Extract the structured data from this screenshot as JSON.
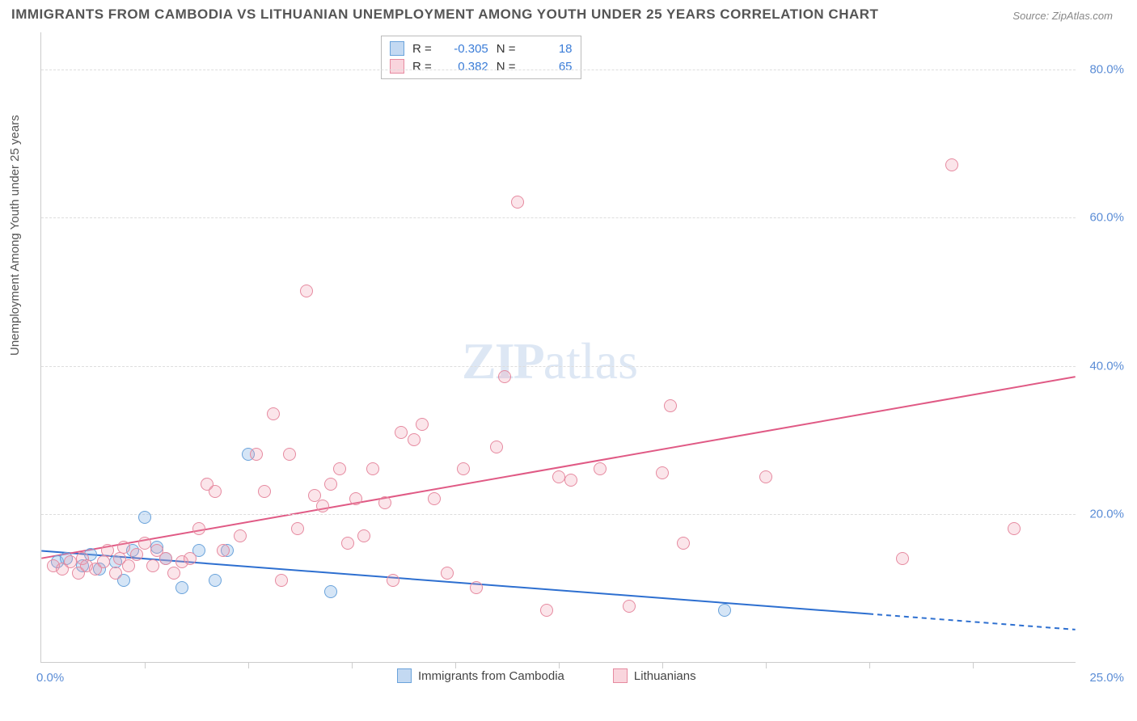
{
  "title": "IMMIGRANTS FROM CAMBODIA VS LITHUANIAN UNEMPLOYMENT AMONG YOUTH UNDER 25 YEARS CORRELATION CHART",
  "source_label": "Source:",
  "source_name": "ZipAtlas.com",
  "y_axis_label": "Unemployment Among Youth under 25 years",
  "watermark_zip": "ZIP",
  "watermark_atlas": "atlas",
  "chart": {
    "type": "scatter",
    "xlim": [
      0,
      25
    ],
    "ylim": [
      0,
      85
    ],
    "x_ticks": [
      0,
      25
    ],
    "x_tick_labels": [
      "0.0%",
      "25.0%"
    ],
    "y_ticks": [
      20,
      40,
      60,
      80
    ],
    "y_tick_labels": [
      "20.0%",
      "40.0%",
      "60.0%",
      "80.0%"
    ],
    "x_minor_ticks": [
      2.5,
      5,
      7.5,
      10,
      12.5,
      15,
      17.5,
      20,
      22.5
    ],
    "grid_color": "#dddddd",
    "background_color": "#ffffff",
    "point_radius": 8,
    "series": [
      {
        "name": "Immigrants from Cambodia",
        "color_fill": "rgba(135,180,230,0.35)",
        "color_stroke": "#6aa3db",
        "R": -0.305,
        "N": 18,
        "trend": {
          "x1": 0,
          "y1": 15,
          "x2": 20,
          "y2": 6.5,
          "extrapolate_to": 25,
          "color": "#2d6fd0",
          "width": 2
        },
        "data": [
          [
            0.4,
            13.5
          ],
          [
            0.6,
            14
          ],
          [
            1.0,
            13
          ],
          [
            1.2,
            14.5
          ],
          [
            1.4,
            12.5
          ],
          [
            1.8,
            13.5
          ],
          [
            2.0,
            11
          ],
          [
            2.2,
            15
          ],
          [
            2.5,
            19.5
          ],
          [
            2.8,
            15.5
          ],
          [
            3.0,
            14
          ],
          [
            3.4,
            10
          ],
          [
            3.8,
            15
          ],
          [
            4.2,
            11
          ],
          [
            4.5,
            15
          ],
          [
            5.0,
            28
          ],
          [
            7.0,
            9.5
          ],
          [
            16.5,
            7
          ]
        ]
      },
      {
        "name": "Lithuanians",
        "color_fill": "rgba(240,150,170,0.25)",
        "color_stroke": "#e68aa0",
        "R": 0.382,
        "N": 65,
        "trend": {
          "x1": 0,
          "y1": 14,
          "x2": 25,
          "y2": 38.5,
          "color": "#e05a85",
          "width": 2
        },
        "data": [
          [
            0.3,
            13
          ],
          [
            0.5,
            12.5
          ],
          [
            0.7,
            13.5
          ],
          [
            0.9,
            12
          ],
          [
            1.0,
            14
          ],
          [
            1.1,
            13
          ],
          [
            1.3,
            12.5
          ],
          [
            1.5,
            13.5
          ],
          [
            1.6,
            15
          ],
          [
            1.8,
            12
          ],
          [
            1.9,
            14
          ],
          [
            2.0,
            15.5
          ],
          [
            2.1,
            13
          ],
          [
            2.3,
            14.5
          ],
          [
            2.5,
            16
          ],
          [
            2.7,
            13
          ],
          [
            2.8,
            15
          ],
          [
            3.0,
            14
          ],
          [
            3.2,
            12
          ],
          [
            3.4,
            13.5
          ],
          [
            3.6,
            14
          ],
          [
            3.8,
            18
          ],
          [
            4.0,
            24
          ],
          [
            4.2,
            23
          ],
          [
            4.4,
            15
          ],
          [
            4.8,
            17
          ],
          [
            5.2,
            28
          ],
          [
            5.4,
            23
          ],
          [
            5.6,
            33.5
          ],
          [
            5.8,
            11
          ],
          [
            6.0,
            28
          ],
          [
            6.2,
            18
          ],
          [
            6.4,
            50
          ],
          [
            6.6,
            22.5
          ],
          [
            6.8,
            21
          ],
          [
            7.0,
            24
          ],
          [
            7.2,
            26
          ],
          [
            7.4,
            16
          ],
          [
            7.6,
            22
          ],
          [
            7.8,
            17
          ],
          [
            8.0,
            26
          ],
          [
            8.3,
            21.5
          ],
          [
            8.5,
            11
          ],
          [
            8.7,
            31
          ],
          [
            9.0,
            30
          ],
          [
            9.2,
            32
          ],
          [
            9.5,
            22
          ],
          [
            9.8,
            12
          ],
          [
            10.2,
            26
          ],
          [
            10.5,
            10
          ],
          [
            11.0,
            29
          ],
          [
            11.2,
            38.5
          ],
          [
            11.5,
            62
          ],
          [
            12.2,
            7
          ],
          [
            12.5,
            25
          ],
          [
            12.8,
            24.5
          ],
          [
            13.5,
            26
          ],
          [
            14.2,
            7.5
          ],
          [
            15.0,
            25.5
          ],
          [
            15.2,
            34.5
          ],
          [
            15.5,
            16
          ],
          [
            17.5,
            25
          ],
          [
            20.8,
            14
          ],
          [
            22.0,
            67
          ],
          [
            23.5,
            18
          ]
        ]
      }
    ]
  },
  "legend_bottom": [
    {
      "label": "Immigrants from Cambodia",
      "swatch": "blue"
    },
    {
      "label": "Lithuanians",
      "swatch": "pink"
    }
  ],
  "stats_legend": {
    "rows": [
      {
        "swatch": "blue",
        "R_label": "R =",
        "R": "-0.305",
        "N_label": "N =",
        "N": "18"
      },
      {
        "swatch": "pink",
        "R_label": "R =",
        "R": "0.382",
        "N_label": "N =",
        "N": "65"
      }
    ]
  }
}
